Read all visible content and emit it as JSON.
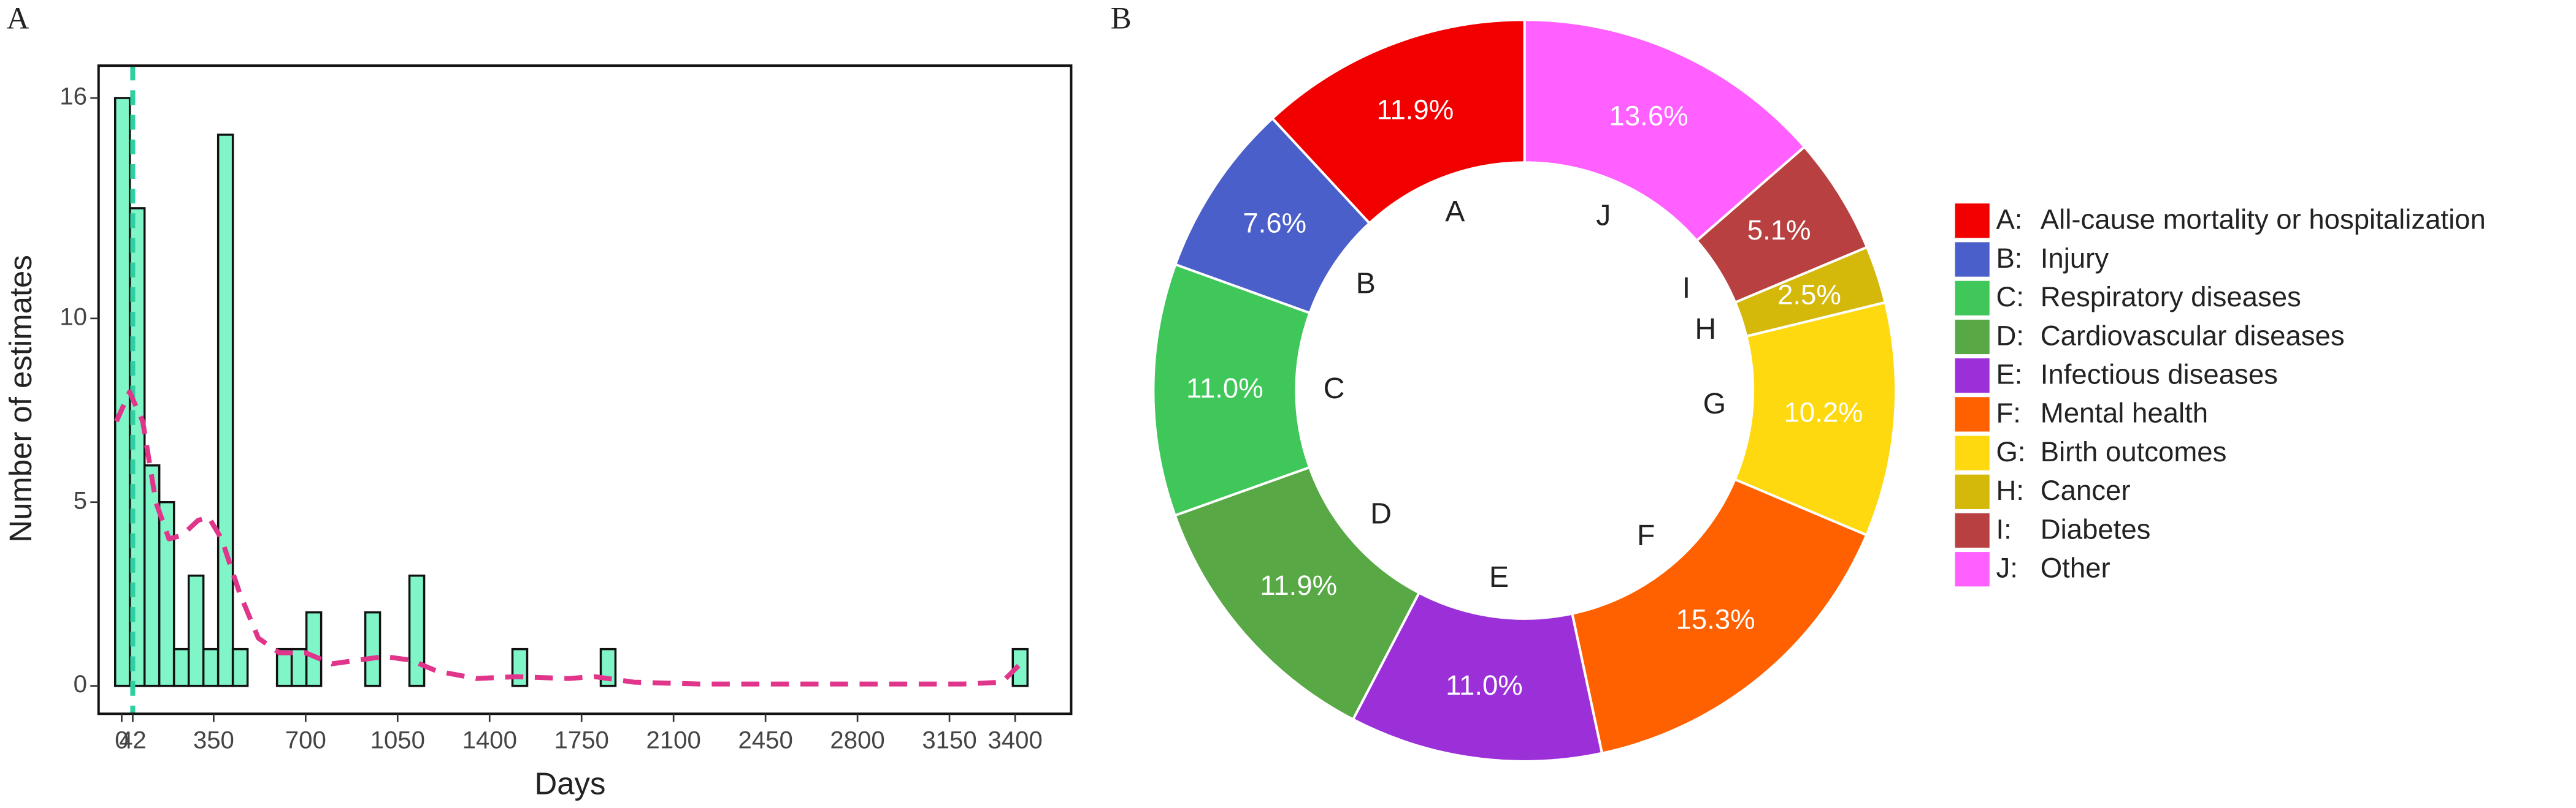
{
  "chart_data": [
    {
      "type": "histogram",
      "panel": "A",
      "x_label": "Days",
      "y_label": "Number of estimates",
      "bins": [
        -25,
        31,
        87,
        143,
        199,
        255,
        311,
        367,
        423,
        479,
        535,
        591,
        647,
        703,
        759,
        815,
        871,
        927,
        983,
        1039,
        1095,
        1151,
        1207,
        1263,
        1319,
        1375,
        1431,
        1487,
        1543,
        1599,
        1655,
        1711,
        1767,
        1823,
        1879,
        1935,
        1991,
        2047,
        2103,
        2159,
        2215,
        2271,
        2327,
        2383,
        2439,
        2495,
        2551,
        2607,
        2663,
        2719,
        2775,
        2831,
        2887,
        2943,
        2999,
        3055,
        3111,
        3167,
        3223,
        3279,
        3335,
        3391,
        3447,
        3503
      ],
      "counts": [
        16,
        13,
        6,
        5,
        1,
        3,
        1,
        15,
        1,
        0,
        0,
        1,
        1,
        2,
        0,
        0,
        0,
        2,
        0,
        0,
        3,
        0,
        0,
        0,
        0,
        0,
        0,
        1,
        0,
        0,
        0,
        0,
        0,
        1,
        0,
        0,
        0,
        0,
        0,
        0,
        0,
        0,
        0,
        0,
        0,
        0,
        0,
        0,
        0,
        0,
        0,
        0,
        0,
        0,
        0,
        0,
        0,
        0,
        0,
        0,
        0,
        1,
        0
      ],
      "color": "#7ff5c8",
      "density": {
        "color": "#e0358a",
        "x": [
          -20,
          30,
          80,
          130,
          180,
          230,
          290,
          330,
          380,
          450,
          520,
          600,
          700,
          800,
          900,
          1000,
          1100,
          1200,
          1350,
          1500,
          1700,
          1800,
          1950,
          2200,
          2800,
          3200,
          3350,
          3420
        ],
        "y": [
          7.2,
          8.0,
          7.2,
          5.0,
          4.0,
          4.1,
          4.5,
          4.6,
          4.0,
          2.5,
          1.3,
          0.9,
          0.9,
          0.6,
          0.7,
          0.8,
          0.7,
          0.4,
          0.2,
          0.25,
          0.2,
          0.25,
          0.1,
          0.05,
          0.05,
          0.05,
          0.1,
          0.6
        ]
      },
      "vline": {
        "x": 42,
        "color": "#2fcfa2"
      },
      "xlim": [
        -88,
        3613
      ],
      "ylim": [
        -0.76,
        16.88
      ],
      "xticks": [
        0,
        42,
        350,
        700,
        1050,
        1400,
        1750,
        2100,
        2450,
        2800,
        3150,
        3400
      ],
      "yticks": [
        0,
        5,
        10,
        16
      ]
    },
    {
      "type": "pie",
      "panel": "B",
      "categories": [
        "A",
        "B",
        "C",
        "D",
        "E",
        "F",
        "G",
        "H",
        "I",
        "J"
      ],
      "values": [
        11.9,
        7.6,
        11.0,
        11.9,
        11.0,
        15.3,
        10.2,
        2.5,
        5.1,
        13.6
      ],
      "value_labels": [
        "11.9%",
        "7.6%",
        "11.0%",
        "11.9%",
        "11.0%",
        "15.3%",
        "10.2%",
        "2.5%",
        "5.1%",
        "13.6%"
      ],
      "colors": [
        "#f20000",
        "#4a5fc9",
        "#40c75a",
        "#58a845",
        "#9b30d9",
        "#ff6000",
        "#ffd90f",
        "#d4b80a",
        "#b84040",
        "#ff60ff"
      ],
      "legend": [
        {
          "key": "A:",
          "label": "All-cause mortality or hospitalization"
        },
        {
          "key": "B:",
          "label": "Injury"
        },
        {
          "key": "C:",
          "label": "Respiratory diseases"
        },
        {
          "key": "D:",
          "label": "Cardiovascular diseases"
        },
        {
          "key": "E:",
          "label": "Infectious diseases"
        },
        {
          "key": "F:",
          "label": "Mental health"
        },
        {
          "key": "G:",
          "label": "Birth outcomes"
        },
        {
          "key": "H:",
          "label": "Cancer"
        },
        {
          "key": "I:",
          "label": "Diabetes"
        },
        {
          "key": "J:",
          "label": "Other"
        }
      ]
    }
  ]
}
